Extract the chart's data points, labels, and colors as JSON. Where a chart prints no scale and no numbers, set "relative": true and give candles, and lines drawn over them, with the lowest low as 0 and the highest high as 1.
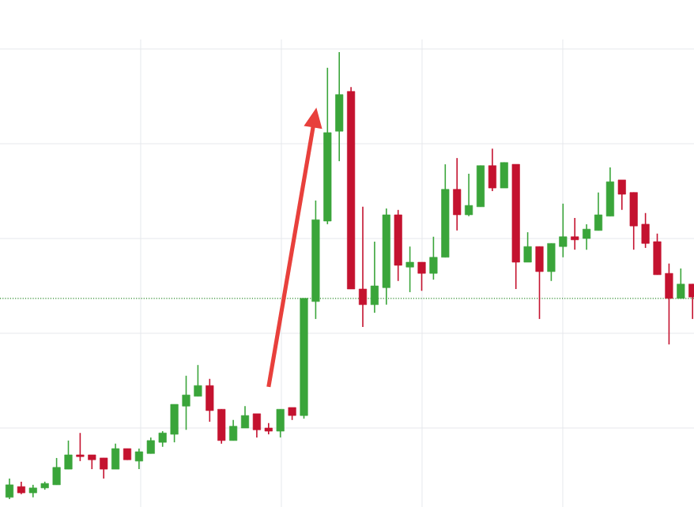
{
  "chart_data": {
    "type": "candlestick",
    "relative": true,
    "grid": true,
    "ohlc": [
      [
        0.004,
        0.046,
        0,
        0.032
      ],
      [
        0.028,
        0.039,
        0.011,
        0.014
      ],
      [
        0.014,
        0.032,
        0.004,
        0.025
      ],
      [
        0.025,
        0.039,
        0.021,
        0.035
      ],
      [
        0.032,
        0.092,
        0.032,
        0.071
      ],
      [
        0.067,
        0.131,
        0.067,
        0.099
      ],
      [
        0.099,
        0.148,
        0.085,
        0.095
      ],
      [
        0.099,
        0.099,
        0.067,
        0.088
      ],
      [
        0.092,
        0.092,
        0.046,
        0.067
      ],
      [
        0.067,
        0.124,
        0.067,
        0.113
      ],
      [
        0.113,
        0.113,
        0.088,
        0.088
      ],
      [
        0.085,
        0.113,
        0.067,
        0.106
      ],
      [
        0.102,
        0.138,
        0.102,
        0.131
      ],
      [
        0.127,
        0.152,
        0.117,
        0.148
      ],
      [
        0.145,
        0.212,
        0.127,
        0.212
      ],
      [
        0.208,
        0.276,
        0.155,
        0.233
      ],
      [
        0.23,
        0.3,
        0.23,
        0.254
      ],
      [
        0.254,
        0.269,
        0.173,
        0.198
      ],
      [
        0.201,
        0.201,
        0.124,
        0.131
      ],
      [
        0.131,
        0.177,
        0.131,
        0.163
      ],
      [
        0.159,
        0.208,
        0.159,
        0.187
      ],
      [
        0.191,
        0.191,
        0.138,
        0.155
      ],
      [
        0.159,
        0.17,
        0.145,
        0.152
      ],
      [
        0.152,
        0.201,
        0.138,
        0.201
      ],
      [
        0.205,
        0.205,
        0.177,
        0.187
      ],
      [
        0.187,
        0.449,
        0.18,
        0.449
      ],
      [
        0.442,
        0.668,
        0.403,
        0.625
      ],
      [
        0.622,
        0.965,
        0.615,
        0.82
      ],
      [
        0.823,
        1.0,
        0.756,
        0.905
      ],
      [
        0.912,
        0.922,
        0.47,
        0.47
      ],
      [
        0.47,
        0.654,
        0.385,
        0.435
      ],
      [
        0.435,
        0.576,
        0.417,
        0.477
      ],
      [
        0.473,
        0.65,
        0.435,
        0.636
      ],
      [
        0.636,
        0.647,
        0.488,
        0.523
      ],
      [
        0.519,
        0.565,
        0.463,
        0.53
      ],
      [
        0.53,
        0.53,
        0.466,
        0.505
      ],
      [
        0.505,
        0.587,
        0.491,
        0.541
      ],
      [
        0.541,
        0.749,
        0.541,
        0.693
      ],
      [
        0.693,
        0.763,
        0.601,
        0.636
      ],
      [
        0.636,
        0.728,
        0.633,
        0.657
      ],
      [
        0.654,
        0.746,
        0.654,
        0.746
      ],
      [
        0.746,
        0.784,
        0.689,
        0.696
      ],
      [
        0.696,
        0.753,
        0.696,
        0.753
      ],
      [
        0.749,
        0.749,
        0.47,
        0.53
      ],
      [
        0.53,
        0.597,
        0.53,
        0.565
      ],
      [
        0.565,
        0.565,
        0.403,
        0.509
      ],
      [
        0.509,
        0.572,
        0.488,
        0.572
      ],
      [
        0.565,
        0.661,
        0.541,
        0.587
      ],
      [
        0.587,
        0.629,
        0.558,
        0.58
      ],
      [
        0.583,
        0.615,
        0.558,
        0.604
      ],
      [
        0.601,
        0.686,
        0.601,
        0.636
      ],
      [
        0.633,
        0.742,
        0.633,
        0.71
      ],
      [
        0.714,
        0.714,
        0.647,
        0.682
      ],
      [
        0.686,
        0.686,
        0.558,
        0.611
      ],
      [
        0.615,
        0.64,
        0.562,
        0.572
      ],
      [
        0.576,
        0.594,
        0.502,
        0.502
      ],
      [
        0.505,
        0.527,
        0.346,
        0.449
      ],
      [
        0.449,
        0.516,
        0.449,
        0.481
      ],
      [
        0.481,
        0.481,
        0.403,
        0.452
      ]
    ],
    "colors": [
      "#3aa53a",
      "#c4122f",
      "#3aa53a",
      "#3aa53a",
      "#3aa53a",
      "#3aa53a",
      "#c4122f",
      "#c4122f",
      "#c4122f",
      "#3aa53a",
      "#c4122f",
      "#3aa53a",
      "#3aa53a",
      "#3aa53a",
      "#3aa53a",
      "#3aa53a",
      "#3aa53a",
      "#c4122f",
      "#c4122f",
      "#3aa53a",
      "#3aa53a",
      "#c4122f",
      "#c4122f",
      "#3aa53a",
      "#c4122f",
      "#3aa53a",
      "#3aa53a",
      "#3aa53a",
      "#3aa53a",
      "#c4122f",
      "#c4122f",
      "#3aa53a",
      "#3aa53a",
      "#c4122f",
      "#3aa53a",
      "#c4122f",
      "#3aa53a",
      "#3aa53a",
      "#c4122f",
      "#3aa53a",
      "#3aa53a",
      "#c4122f",
      "#3aa53a",
      "#c4122f",
      "#3aa53a",
      "#c4122f",
      "#3aa53a",
      "#3aa53a",
      "#c4122f",
      "#3aa53a",
      "#3aa53a",
      "#3aa53a",
      "#c4122f",
      "#c4122f",
      "#c4122f",
      "#c4122f",
      "#c4122f",
      "#3aa53a",
      "#c4122f"
    ],
    "ref_lines": [
      {
        "axis": "y",
        "value": 0.449,
        "color": "#2e8b2e",
        "line_style": "dotted"
      }
    ]
  }
}
